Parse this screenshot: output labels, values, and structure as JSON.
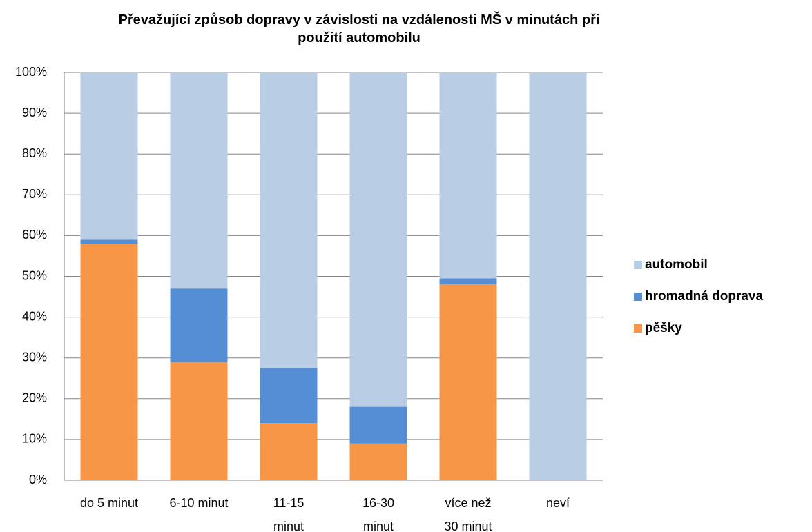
{
  "chart_data": {
    "type": "stacked_bar",
    "title": "Převažující způsob dopravy v závislosti na vzdálenosti MŠ v minutách při použití automobilu",
    "categories": [
      "do 5 minut",
      "6-10 minut",
      "11-15 minut",
      "16-30 minut",
      "více než 30 minut",
      "neví"
    ],
    "series": [
      {
        "name": "pěšky",
        "color": "#f79646",
        "values": [
          58,
          29,
          14,
          9,
          48,
          0
        ]
      },
      {
        "name": "hromadná doprava",
        "color": "#558ed5",
        "values": [
          1,
          18,
          13.5,
          9,
          1.5,
          0
        ]
      },
      {
        "name": "automobil",
        "color": "#b9cde5",
        "values": [
          41,
          53,
          72.5,
          82,
          50.5,
          100
        ]
      }
    ],
    "ylim": [
      0,
      100
    ],
    "yticks": [
      {
        "value": 0,
        "label": "0%"
      },
      {
        "value": 10,
        "label": "10%"
      },
      {
        "value": 20,
        "label": "20%"
      },
      {
        "value": 30,
        "label": "30%"
      },
      {
        "value": 40,
        "label": "40%"
      },
      {
        "value": 50,
        "label": "50%"
      },
      {
        "value": 60,
        "label": "60%"
      },
      {
        "value": 70,
        "label": "70%"
      },
      {
        "value": 80,
        "label": "80%"
      },
      {
        "value": 90,
        "label": "90%"
      },
      {
        "value": 100,
        "label": "100%"
      }
    ],
    "grid": true,
    "legend": "right"
  }
}
